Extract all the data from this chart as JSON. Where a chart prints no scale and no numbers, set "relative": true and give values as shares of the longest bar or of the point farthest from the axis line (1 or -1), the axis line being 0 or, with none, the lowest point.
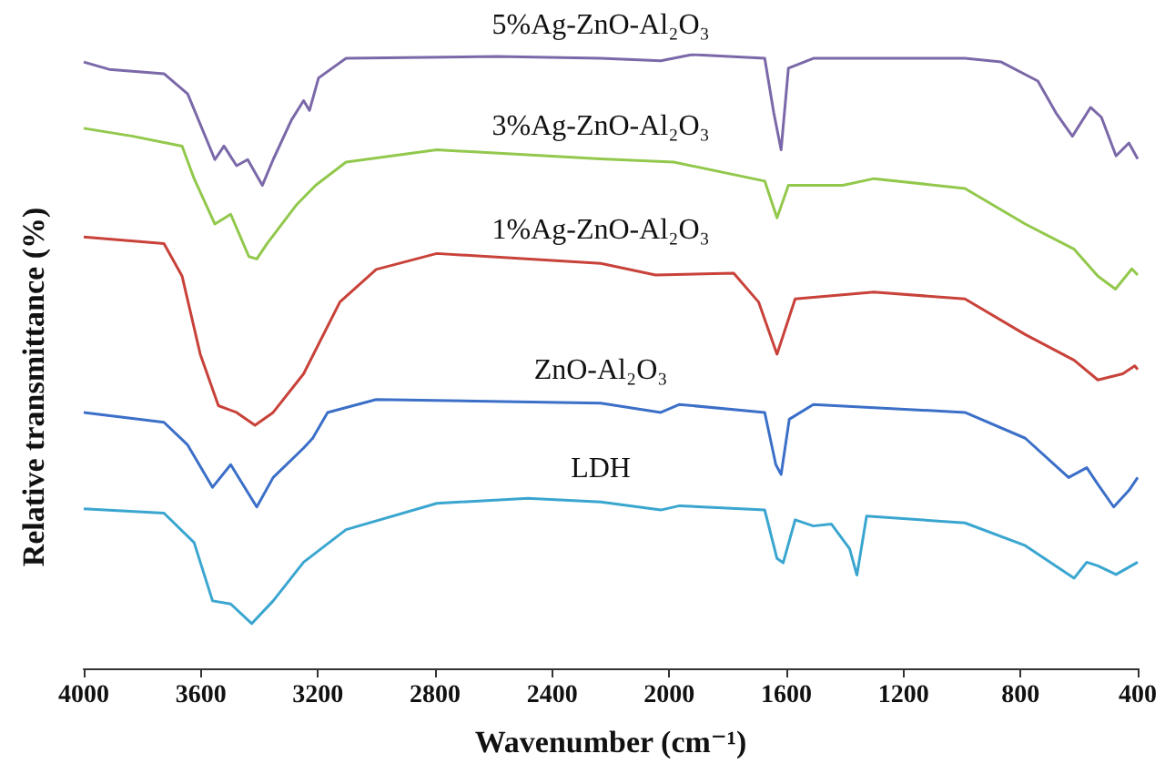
{
  "chart_data": {
    "type": "line",
    "relative": true,
    "xlabel": "Wavenumber (cm⁻¹)",
    "ylabel": "Relative transmittance (%)",
    "xlim": [
      4000,
      400
    ],
    "xticks": [
      4000,
      3600,
      3200,
      2800,
      2400,
      2000,
      1600,
      1200,
      800,
      400
    ],
    "grid": false,
    "legend": false,
    "marker": "none",
    "line_style": "solid",
    "series": [
      {
        "name": "5%Ag-ZnO-Al₂O₃",
        "color": "#7b68a8",
        "x": [
          4000,
          3913,
          3726,
          3645,
          3552,
          3521,
          3478,
          3440,
          3390,
          3353,
          3291,
          3249,
          3229,
          3198,
          3104,
          2588,
          2234,
          2029,
          1923,
          1674,
          1643,
          1618,
          1593,
          1508,
          990,
          866,
          741,
          679,
          623,
          561,
          524,
          474,
          430,
          400
        ],
        "values": [
          0.988,
          0.976,
          0.969,
          0.936,
          0.829,
          0.851,
          0.819,
          0.829,
          0.787,
          0.829,
          0.893,
          0.925,
          0.909,
          0.962,
          0.994,
          0.997,
          0.994,
          0.99,
          1.0,
          0.994,
          0.905,
          0.845,
          0.978,
          0.994,
          0.994,
          0.988,
          0.957,
          0.905,
          0.867,
          0.914,
          0.898,
          0.835,
          0.856,
          0.83
        ]
      },
      {
        "name": "3%Ag-ZnO-Al₂O₃",
        "color": "#92c84c",
        "x": [
          4000,
          3832,
          3664,
          3623,
          3552,
          3498,
          3436,
          3409,
          3374,
          3272,
          3208,
          3104,
          2794,
          2234,
          1985,
          1674,
          1632,
          1593,
          1407,
          1301,
          990,
          784,
          617,
          536,
          476,
          420,
          400
        ],
        "values": [
          0.88,
          0.867,
          0.851,
          0.798,
          0.724,
          0.74,
          0.671,
          0.667,
          0.692,
          0.756,
          0.787,
          0.825,
          0.845,
          0.83,
          0.825,
          0.794,
          0.734,
          0.787,
          0.787,
          0.798,
          0.782,
          0.724,
          0.683,
          0.639,
          0.618,
          0.651,
          0.641
        ]
      },
      {
        "name": "1%Ag-ZnO-Al₂O₃",
        "color": "#c8423a",
        "x": [
          4000,
          3726,
          3664,
          3602,
          3540,
          3478,
          3415,
          3353,
          3249,
          3125,
          3001,
          2794,
          2234,
          2047,
          1780,
          1695,
          1632,
          1570,
          1301,
          990,
          784,
          617,
          536,
          451,
          410,
          400
        ],
        "values": [
          0.703,
          0.692,
          0.639,
          0.512,
          0.428,
          0.417,
          0.396,
          0.417,
          0.48,
          0.597,
          0.65,
          0.676,
          0.66,
          0.641,
          0.644,
          0.597,
          0.512,
          0.602,
          0.613,
          0.602,
          0.544,
          0.502,
          0.47,
          0.48,
          0.493,
          0.487
        ]
      },
      {
        "name": "ZnO-Al₂O₃",
        "color": "#3b6fc8",
        "x": [
          4000,
          3726,
          3645,
          3560,
          3498,
          3457,
          3409,
          3353,
          3249,
          3218,
          3167,
          3001,
          2234,
          2029,
          1965,
          1674,
          1636,
          1618,
          1590,
          1508,
          990,
          784,
          636,
          574,
          536,
          482,
          430,
          400
        ],
        "values": [
          0.417,
          0.401,
          0.364,
          0.295,
          0.332,
          0.3,
          0.263,
          0.311,
          0.359,
          0.375,
          0.417,
          0.438,
          0.432,
          0.417,
          0.43,
          0.417,
          0.332,
          0.316,
          0.406,
          0.43,
          0.417,
          0.375,
          0.311,
          0.327,
          0.3,
          0.263,
          0.29,
          0.311
        ]
      },
      {
        "name": "LDH",
        "color": "#3aa6d0",
        "x": [
          4000,
          3726,
          3623,
          3560,
          3498,
          3426,
          3353,
          3249,
          3104,
          2794,
          2483,
          2234,
          2029,
          1965,
          1674,
          1632,
          1611,
          1570,
          1508,
          1446,
          1384,
          1359,
          1326,
          990,
          784,
          617,
          574,
          536,
          474,
          400
        ],
        "values": [
          0.26,
          0.253,
          0.205,
          0.11,
          0.105,
          0.073,
          0.11,
          0.173,
          0.226,
          0.269,
          0.277,
          0.271,
          0.258,
          0.265,
          0.258,
          0.179,
          0.172,
          0.242,
          0.232,
          0.235,
          0.195,
          0.152,
          0.248,
          0.237,
          0.2,
          0.147,
          0.173,
          0.167,
          0.153,
          0.173
        ]
      }
    ]
  }
}
